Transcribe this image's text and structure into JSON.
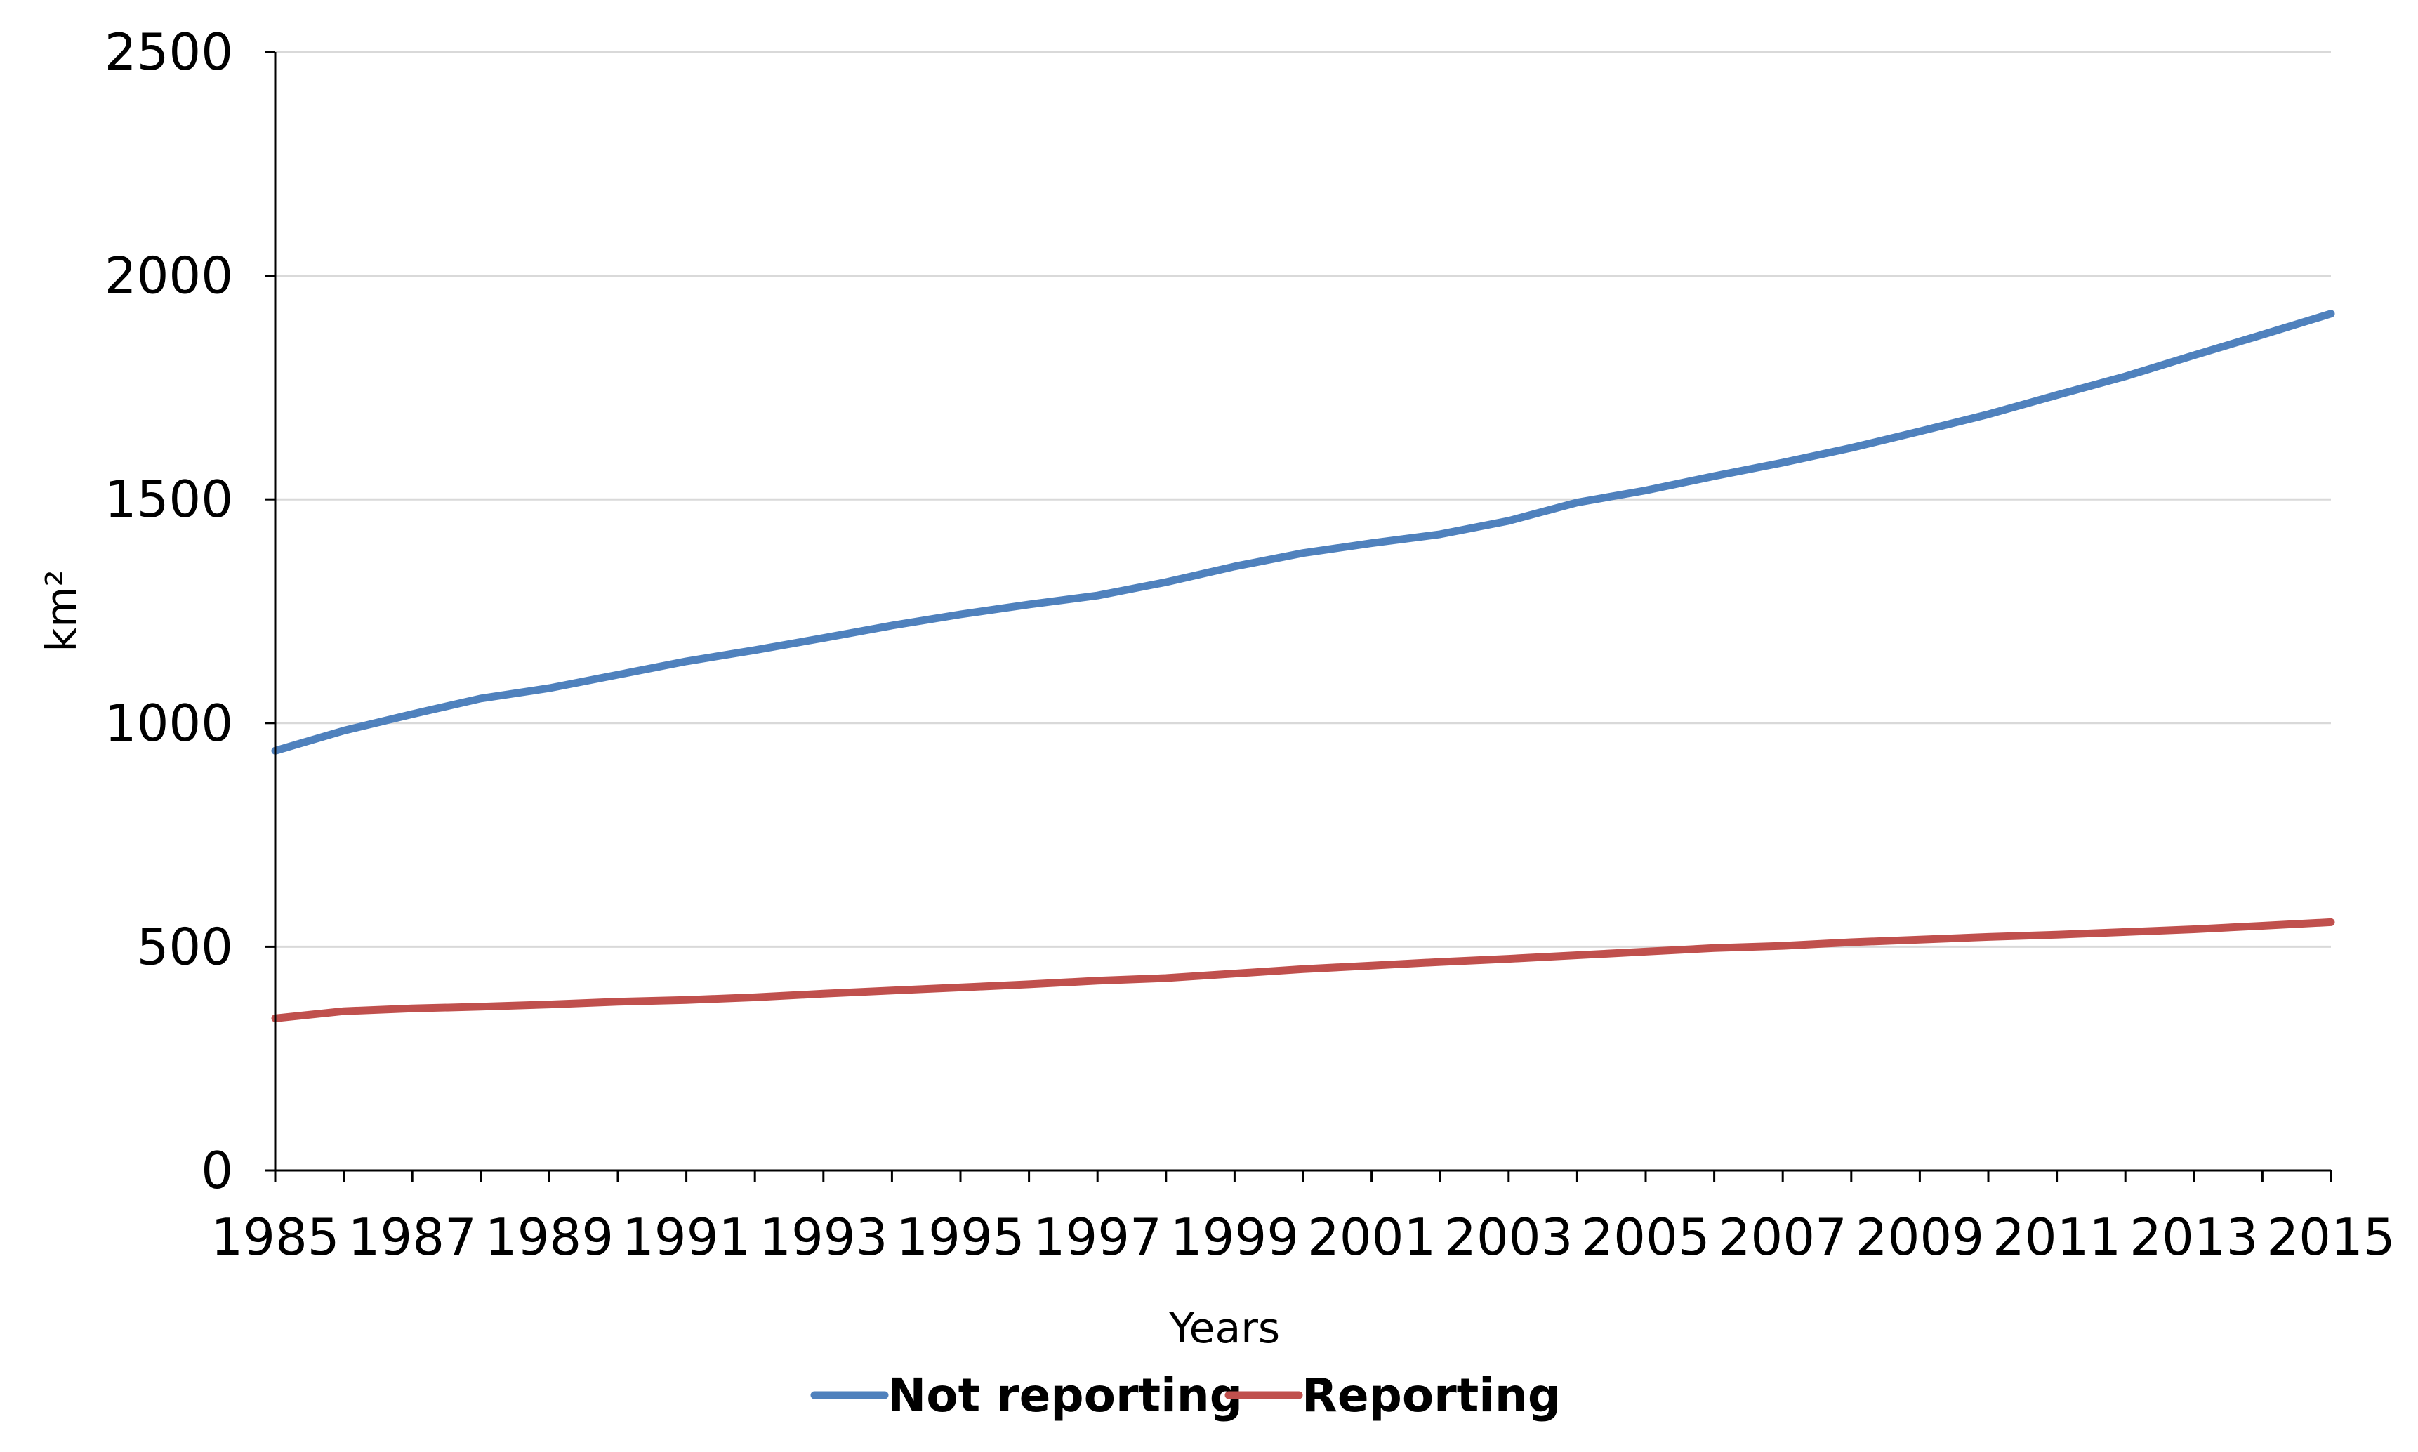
{
  "chart_data": {
    "type": "line",
    "title": "",
    "xlabel": "Years",
    "ylabel": "km²",
    "x": [
      1985,
      1986,
      1987,
      1988,
      1989,
      1990,
      1991,
      1992,
      1993,
      1994,
      1995,
      1996,
      1997,
      1998,
      1999,
      2000,
      2001,
      2002,
      2003,
      2004,
      2005,
      2006,
      2007,
      2008,
      2009,
      2010,
      2011,
      2012,
      2013,
      2014,
      2015
    ],
    "x_tick_labels": [
      "1985",
      "1987",
      "1989",
      "1991",
      "1993",
      "1995",
      "1997",
      "1999",
      "2001",
      "2003",
      "2005",
      "2007",
      "2009",
      "2011",
      "2013",
      "2015"
    ],
    "y_tick_labels": [
      "0",
      "500",
      "1000",
      "1500",
      "2000",
      "2500"
    ],
    "ylim": [
      0,
      2500
    ],
    "xlim": [
      1985,
      2015
    ],
    "grid": true,
    "legend_position": "bottom",
    "series": [
      {
        "name": "Not reporting",
        "color": "#4f81bd",
        "values": [
          938,
          983,
          1020,
          1055,
          1078,
          1108,
          1138,
          1163,
          1190,
          1218,
          1243,
          1265,
          1285,
          1315,
          1350,
          1380,
          1402,
          1422,
          1452,
          1493,
          1520,
          1552,
          1582,
          1615,
          1652,
          1690,
          1733,
          1775,
          1822,
          1868,
          1915
        ]
      },
      {
        "name": "Reporting",
        "color": "#c0504d",
        "values": [
          340,
          356,
          362,
          366,
          371,
          377,
          381,
          387,
          395,
          402,
          409,
          416,
          424,
          430,
          440,
          450,
          458,
          466,
          473,
          481,
          489,
          497,
          502,
          510,
          516,
          522,
          527,
          533,
          539,
          547,
          555
        ]
      }
    ]
  }
}
